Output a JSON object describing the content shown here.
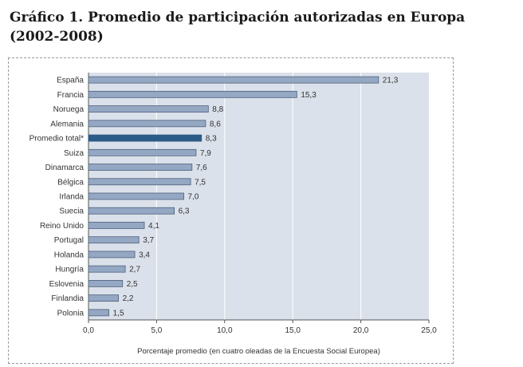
{
  "heading": "Gráfico 1. Promedio de participación autorizadas en Europa (2002-2008)",
  "chart_data": {
    "type": "bar",
    "orientation": "horizontal",
    "title": "",
    "xlabel": "Porcentaje promedio (en cuatro oleadas de la Encuesta Social Europea)",
    "ylabel": "",
    "xlim": [
      0,
      25
    ],
    "xticks": [
      "0,0",
      "5,0",
      "10,0",
      "15,0",
      "20,0",
      "25,0"
    ],
    "grid": true,
    "categories": [
      "España",
      "Francia",
      "Noruega",
      "Alemania",
      "Promedio total*",
      "Suiza",
      "Dinamarca",
      "Bélgica",
      "Irlanda",
      "Suecia",
      "Reino Unido",
      "Portugal",
      "Holanda",
      "Hungría",
      "Eslovenia",
      "Finlandia",
      "Polonia"
    ],
    "values": [
      21.3,
      15.3,
      8.8,
      8.6,
      8.3,
      7.9,
      7.6,
      7.5,
      7.0,
      6.3,
      4.1,
      3.7,
      3.4,
      2.7,
      2.5,
      2.2,
      1.5
    ],
    "value_labels": [
      "21,3",
      "15,3",
      "8,8",
      "8,6",
      "8,3",
      "7,9",
      "7,6",
      "7,5",
      "7,0",
      "6,3",
      "4,1",
      "3,7",
      "3,4",
      "2,7",
      "2,5",
      "2,2",
      "1,5"
    ],
    "highlight": "Promedio total*",
    "colors": {
      "bar": "#94a8c4",
      "bar_border": "#4d5f7a",
      "highlight": "#2b5c88",
      "plot_bg": "#dbe1ea",
      "grid": "#ffffff"
    }
  }
}
